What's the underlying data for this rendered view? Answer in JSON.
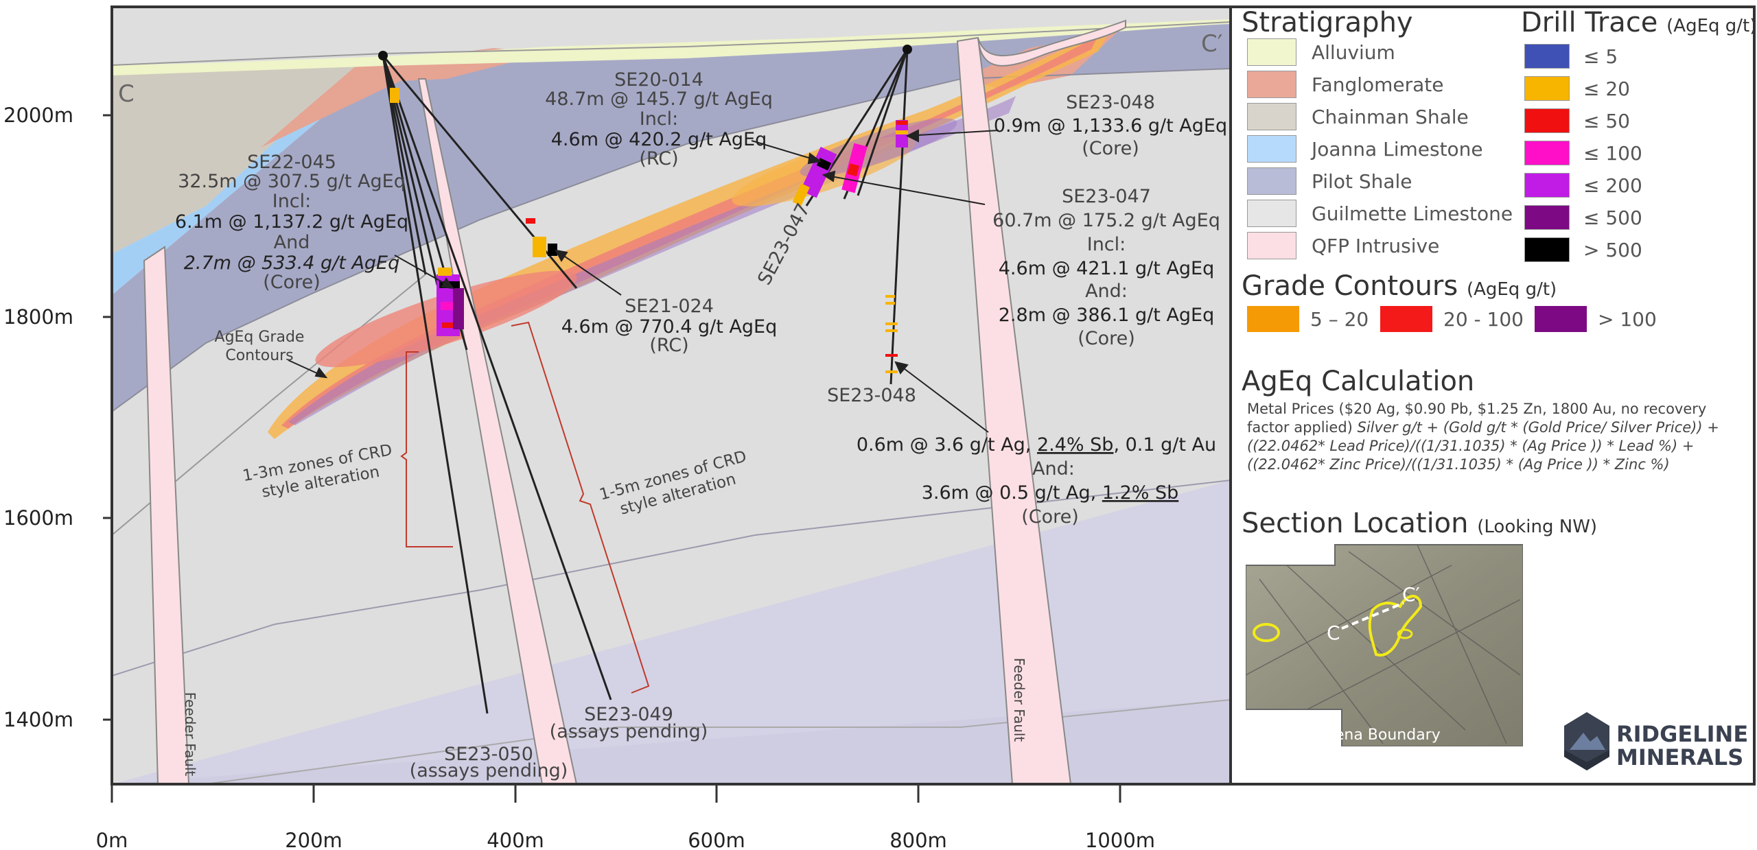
{
  "section_letters": {
    "left": "C",
    "right": "C′"
  },
  "axes": {
    "y_ticks": [
      "2000m",
      "1800m",
      "1600m",
      "1400m"
    ],
    "x_ticks": [
      "0m",
      "200m",
      "400m",
      "600m",
      "800m",
      "1000m"
    ]
  },
  "annotations": {
    "se20_014": [
      "SE20-014",
      "48.7m @ 145.7 g/t AgEq",
      "Incl:",
      "4.6m @ 420.2 g/t AgEq",
      "(RC)"
    ],
    "se22_045": [
      "SE22-045",
      "32.5m @ 307.5 g/t AgEq",
      "Incl:",
      "6.1m @ 1,137.2 g/t AgEq",
      "And",
      "2.7m @ 533.4 g/t AgEq",
      "(Core)"
    ],
    "se21_024": [
      "SE21-024",
      "4.6m @ 770.4 g/t AgEq",
      "(RC)"
    ],
    "se23_048_top": [
      "SE23-048",
      "0.9m @ 1,133.6 g/t AgEq",
      "(Core)"
    ],
    "se23_047": [
      "SE23-047",
      "60.7m @ 175.2 g/t AgEq",
      "Incl:",
      "4.6m @ 421.1 g/t AgEq",
      "And:",
      "2.8m @ 386.1 g/t AgEq",
      "(Core)"
    ],
    "se23_048_low_label": "SE23-048",
    "se23_048_low": {
      "line1": "0.6m @ 3.6 g/t Ag, ",
      "line1_u": "2.4% Sb",
      "line1_end": ", 0.1 g/t Au",
      "line2": "And:",
      "line3": "3.6m @ 0.5 g/t Ag, ",
      "line3_u": "1.2% Sb",
      "line4": "(Core)"
    },
    "se23_047_hole": "SE23-047",
    "contours_label": [
      "AgEq Grade",
      "Contours"
    ],
    "crd_left": [
      "1-3m zones of CRD",
      "style alteration"
    ],
    "crd_right": [
      "1-5m zones of CRD",
      "style alteration"
    ],
    "se23_049": [
      "SE23-049",
      "(assays pending)"
    ],
    "se23_050": [
      "SE23-050",
      "(assays pending)"
    ],
    "feeder_fault_left": "Feeder Fault",
    "feeder_fault_right": "Feeder Fault"
  },
  "legend": {
    "stratigraphy_title": "Stratigraphy",
    "stratigraphy": [
      {
        "label": "Alluvium",
        "color": "#f1f6cf"
      },
      {
        "label": "Fanglomerate",
        "color": "#e9a898"
      },
      {
        "label": "Chainman Shale",
        "color": "#d8d4cb"
      },
      {
        "label": "Joanna Limestone",
        "color": "#b6dafb"
      },
      {
        "label": "Pilot Shale",
        "color": "#b8bcd6"
      },
      {
        "label": "Guilmette Limestone",
        "color": "#e6e6e6"
      },
      {
        "label": "QFP Intrusive",
        "color": "#fcdfe4"
      }
    ],
    "drill_title": "Drill Trace",
    "drill_unit": "(AgEq g/t)",
    "drill": [
      {
        "label": "≤ 5",
        "color": "#3f51b5"
      },
      {
        "label": "≤ 20",
        "color": "#f7b500"
      },
      {
        "label": "≤ 50",
        "color": "#f01010"
      },
      {
        "label": "≤ 100",
        "color": "#ff10c8"
      },
      {
        "label": "≤ 200",
        "color": "#c01ce6"
      },
      {
        "label": "≤ 500",
        "color": "#7d0a84"
      },
      {
        "label": "> 500",
        "color": "#000000"
      }
    ],
    "grade_title": "Grade Contours",
    "grade_unit": "(AgEq g/t)",
    "grade": [
      {
        "label": "5 – 20",
        "color": "#f59a05"
      },
      {
        "label": "20 - 100",
        "color": "#f41a1a"
      },
      {
        "label": "> 100",
        "color": "#7d0a84"
      }
    ]
  },
  "calculation": {
    "title": "AgEq Calculation",
    "text_plain": "Metal Prices ($20 Ag, $0.90 Pb, $1.25 Zn, 1800 Au, no recovery factor applied) ",
    "text_italic": "Silver g/t + (Gold g/t * (Gold Price/ Silver Price)) + ((22.0462* Lead Price)/((1/31.1035) * (Ag Price )) * Lead %) + ((22.0462* Zinc Price)/((1/31.1035) * (Ag Price )) * Zinc %)"
  },
  "section_location": {
    "title": "Section Location",
    "subtitle": "(Looking NW)",
    "map_caption": "Selena Boundary",
    "map_labels": [
      "C",
      "C′"
    ]
  },
  "logo": {
    "line1": "RIDGELINE",
    "line2": "MINERALS"
  }
}
